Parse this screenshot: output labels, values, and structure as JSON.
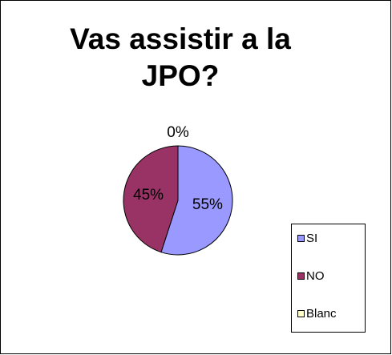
{
  "chart_data": {
    "type": "pie",
    "title": "Vas assistir a la JPO?",
    "categories": [
      "SI",
      "NO",
      "Blanc"
    ],
    "values": [
      55,
      45,
      0
    ],
    "value_labels": [
      "55%",
      "45%",
      "0%"
    ],
    "colors": [
      "#9999ff",
      "#993366",
      "#ffffcc"
    ],
    "legend": "right"
  }
}
